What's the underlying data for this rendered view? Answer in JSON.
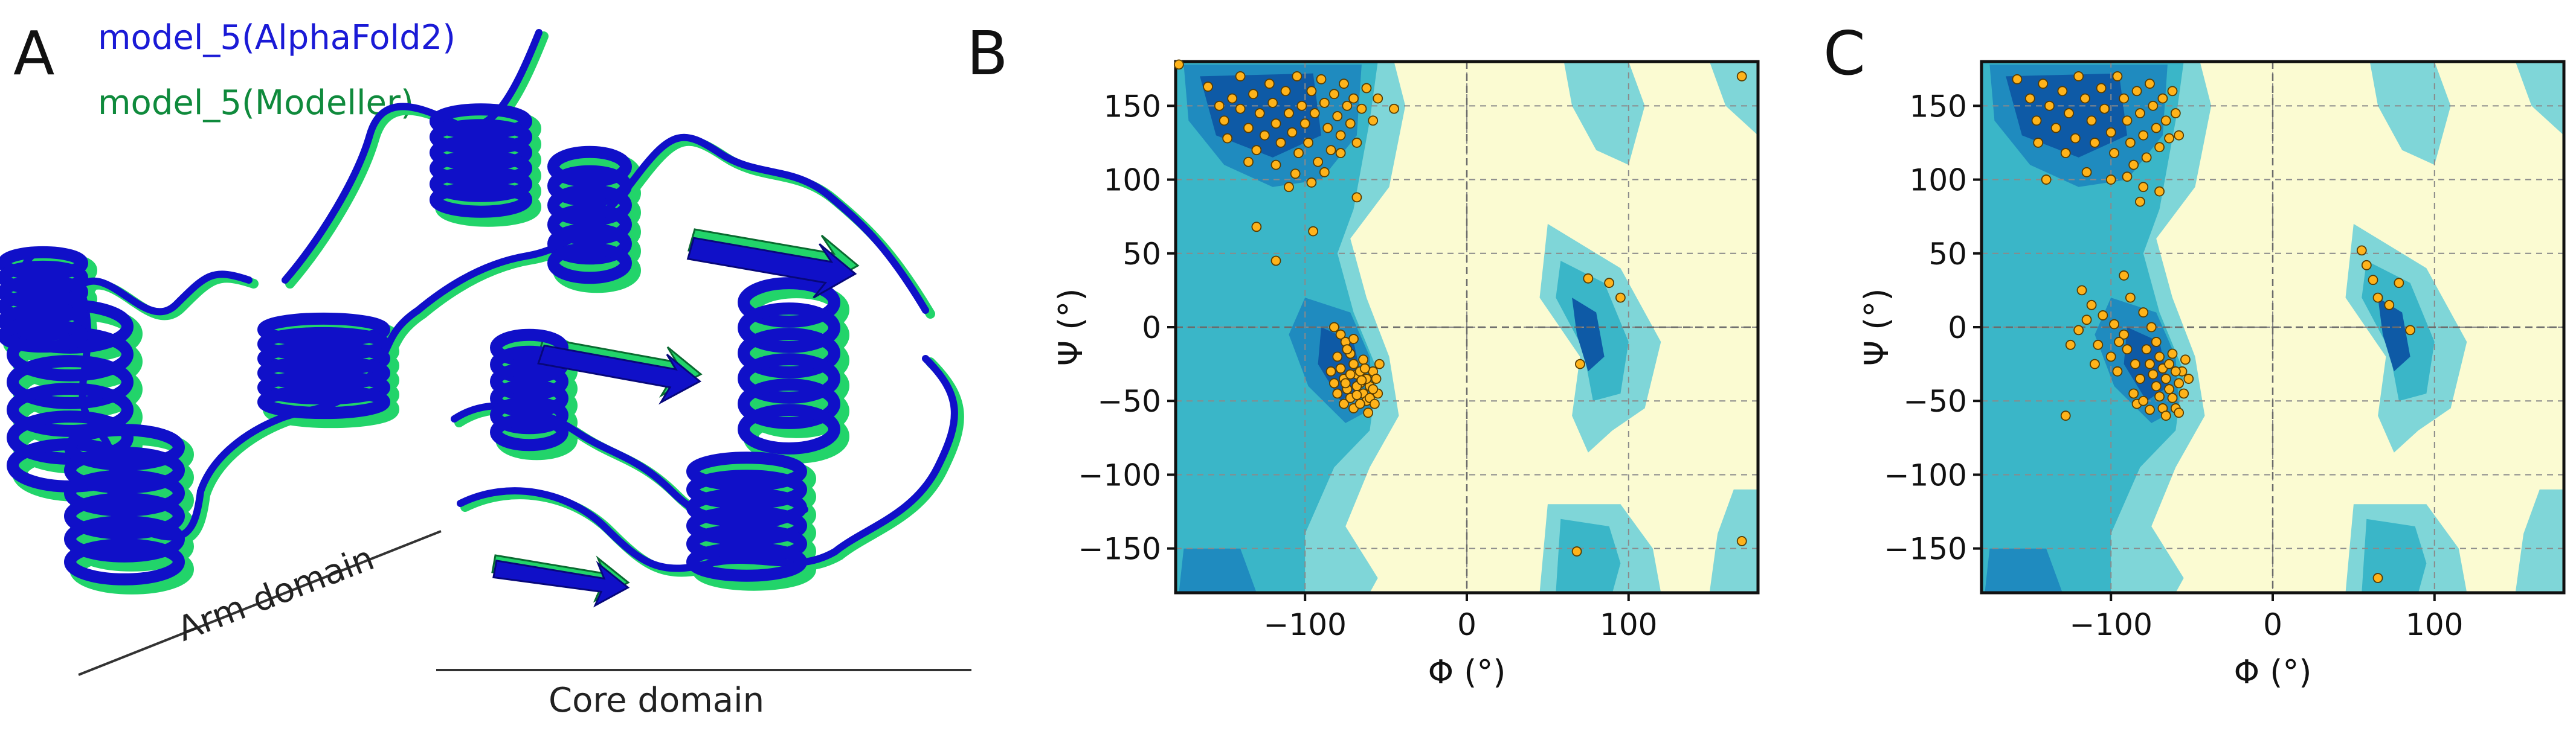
{
  "panel_a": {
    "letter": "A",
    "legend": [
      {
        "label": "model_5(AlphaFold2)",
        "color": "#1a1ad6"
      },
      {
        "label": "model_5(Modeller)",
        "color": "#0f8a3c"
      }
    ],
    "domain_labels": {
      "arm": "Arm domain",
      "core": "Core domain"
    },
    "colors": {
      "alphafold": "#1010c8",
      "modeller": "#22d46a"
    }
  },
  "panel_b": {
    "letter": "B"
  },
  "panel_c": {
    "letter": "C"
  },
  "chart_data": [
    {
      "type": "scatter",
      "panel": "B",
      "title": "",
      "xlabel": "Φ (°)",
      "ylabel": "Ψ (°)",
      "xlim": [
        -180,
        180
      ],
      "ylim": [
        -180,
        180
      ],
      "xticks": [
        -100,
        0,
        100
      ],
      "yticks": [
        150,
        100,
        50,
        0,
        -50,
        -100,
        -150
      ],
      "grid": true,
      "point_color": "#ffb31a",
      "series": [
        {
          "points": [
            [
              -178,
              178
            ],
            [
              -160,
              163
            ],
            [
              -153,
              150
            ],
            [
              -150,
              140
            ],
            [
              -145,
              155
            ],
            [
              -140,
              170
            ],
            [
              -140,
              148
            ],
            [
              -135,
              135
            ],
            [
              -132,
              158
            ],
            [
              -128,
              145
            ],
            [
              -125,
              130
            ],
            [
              -122,
              165
            ],
            [
              -120,
              152
            ],
            [
              -118,
              138
            ],
            [
              -115,
              125
            ],
            [
              -112,
              160
            ],
            [
              -110,
              145
            ],
            [
              -108,
              132
            ],
            [
              -105,
              170
            ],
            [
              -104,
              118
            ],
            [
              -102,
              150
            ],
            [
              -100,
              138
            ],
            [
              -98,
              125
            ],
            [
              -96,
              160
            ],
            [
              -94,
              145
            ],
            [
              -92,
              112
            ],
            [
              -90,
              168
            ],
            [
              -88,
              152
            ],
            [
              -86,
              135
            ],
            [
              -84,
              120
            ],
            [
              -82,
              158
            ],
            [
              -80,
              143
            ],
            [
              -78,
              130
            ],
            [
              -76,
              165
            ],
            [
              -74,
              150
            ],
            [
              -72,
              138
            ],
            [
              -70,
              155
            ],
            [
              -68,
              125
            ],
            [
              -65,
              148
            ],
            [
              -62,
              162
            ],
            [
              -58,
              140
            ],
            [
              -55,
              155
            ],
            [
              -45,
              148
            ],
            [
              -148,
              128
            ],
            [
              -130,
              120
            ],
            [
              -118,
              110
            ],
            [
              -106,
              104
            ],
            [
              -135,
              112
            ],
            [
              -96,
              98
            ],
            [
              -88,
              105
            ],
            [
              -78,
              118
            ],
            [
              -110,
              95
            ],
            [
              -130,
              68
            ],
            [
              -118,
              45
            ],
            [
              -95,
              65
            ],
            [
              -68,
              88
            ],
            [
              -82,
              0
            ],
            [
              -78,
              -5
            ],
            [
              -75,
              -10
            ],
            [
              -72,
              -18
            ],
            [
              -70,
              -25
            ],
            [
              -68,
              -32
            ],
            [
              -66,
              -38
            ],
            [
              -64,
              -45
            ],
            [
              -62,
              -50
            ],
            [
              -60,
              -40
            ],
            [
              -58,
              -30
            ],
            [
              -56,
              -35
            ],
            [
              -55,
              -45
            ],
            [
              -54,
              -25
            ],
            [
              -80,
              -20
            ],
            [
              -78,
              -28
            ],
            [
              -76,
              -35
            ],
            [
              -74,
              -42
            ],
            [
              -72,
              -48
            ],
            [
              -70,
              -55
            ],
            [
              -68,
              -40
            ],
            [
              -66,
              -30
            ],
            [
              -64,
              -22
            ],
            [
              -62,
              -35
            ],
            [
              -60,
              -48
            ],
            [
              -58,
              -42
            ],
            [
              -84,
              -30
            ],
            [
              -82,
              -38
            ],
            [
              -80,
              -45
            ],
            [
              -76,
              -52
            ],
            [
              -74,
              -15
            ],
            [
              -70,
              -8
            ],
            [
              -66,
              -52
            ],
            [
              -63,
              -28
            ],
            [
              -61,
              -58
            ],
            [
              -57,
              -52
            ],
            [
              -75,
              -38
            ],
            [
              -72,
              -32
            ],
            [
              -68,
              -46
            ],
            [
              -65,
              -36
            ],
            [
              75,
              33
            ],
            [
              88,
              30
            ],
            [
              95,
              20
            ],
            [
              70,
              -25
            ],
            [
              170,
              170
            ],
            [
              170,
              -145
            ],
            [
              68,
              -152
            ]
          ]
        }
      ]
    },
    {
      "type": "scatter",
      "panel": "C",
      "title": "",
      "xlabel": "Φ (°)",
      "ylabel": "Ψ (°)",
      "xlim": [
        -180,
        180
      ],
      "ylim": [
        -180,
        180
      ],
      "xticks": [
        -100,
        0,
        100
      ],
      "yticks": [
        150,
        100,
        50,
        0,
        -50,
        -100,
        -150
      ],
      "grid": true,
      "point_color": "#ffb31a",
      "series": [
        {
          "points": [
            [
              -158,
              168
            ],
            [
              -150,
              155
            ],
            [
              -146,
              140
            ],
            [
              -142,
              165
            ],
            [
              -138,
              150
            ],
            [
              -134,
              135
            ],
            [
              -130,
              160
            ],
            [
              -126,
              145
            ],
            [
              -122,
              128
            ],
            [
              -120,
              170
            ],
            [
              -116,
              155
            ],
            [
              -112,
              140
            ],
            [
              -110,
              125
            ],
            [
              -106,
              162
            ],
            [
              -104,
              148
            ],
            [
              -100,
              132
            ],
            [
              -98,
              118
            ],
            [
              -96,
              170
            ],
            [
              -92,
              155
            ],
            [
              -90,
              140
            ],
            [
              -88,
              125
            ],
            [
              -86,
              110
            ],
            [
              -84,
              160
            ],
            [
              -82,
              145
            ],
            [
              -80,
              130
            ],
            [
              -78,
              115
            ],
            [
              -76,
              165
            ],
            [
              -74,
              150
            ],
            [
              -72,
              135
            ],
            [
              -70,
              122
            ],
            [
              -68,
              155
            ],
            [
              -66,
              140
            ],
            [
              -64,
              128
            ],
            [
              -62,
              160
            ],
            [
              -60,
              145
            ],
            [
              -58,
              130
            ],
            [
              -145,
              125
            ],
            [
              -128,
              118
            ],
            [
              -115,
              105
            ],
            [
              -100,
              100
            ],
            [
              -90,
              102
            ],
            [
              -80,
              95
            ],
            [
              -70,
              92
            ],
            [
              -140,
              100
            ],
            [
              -82,
              85
            ],
            [
              -118,
              25
            ],
            [
              -112,
              15
            ],
            [
              -105,
              8
            ],
            [
              -98,
              2
            ],
            [
              -92,
              -5
            ],
            [
              -88,
              20
            ],
            [
              -80,
              10
            ],
            [
              -75,
              0
            ],
            [
              -72,
              -10
            ],
            [
              -70,
              -20
            ],
            [
              -68,
              -28
            ],
            [
              -66,
              -35
            ],
            [
              -64,
              -42
            ],
            [
              -62,
              -48
            ],
            [
              -60,
              -55
            ],
            [
              -58,
              -38
            ],
            [
              -56,
              -30
            ],
            [
              -55,
              -45
            ],
            [
              -54,
              -22
            ],
            [
              -52,
              -35
            ],
            [
              -78,
              -15
            ],
            [
              -76,
              -25
            ],
            [
              -74,
              -32
            ],
            [
              -72,
              -40
            ],
            [
              -70,
              -47
            ],
            [
              -68,
              -55
            ],
            [
              -66,
              -60
            ],
            [
              -64,
              -25
            ],
            [
              -62,
              -18
            ],
            [
              -60,
              -30
            ],
            [
              -90,
              -15
            ],
            [
              -85,
              -25
            ],
            [
              -82,
              -35
            ],
            [
              -95,
              -10
            ],
            [
              -100,
              -20
            ],
            [
              -108,
              -12
            ],
            [
              -115,
              5
            ],
            [
              -120,
              -2
            ],
            [
              -125,
              -12
            ],
            [
              -110,
              -25
            ],
            [
              -86,
              -45
            ],
            [
              -84,
              -52
            ],
            [
              -80,
              -50
            ],
            [
              -76,
              -56
            ],
            [
              -58,
              -58
            ],
            [
              -92,
              35
            ],
            [
              -96,
              -30
            ],
            [
              -128,
              -60
            ],
            [
              55,
              52
            ],
            [
              58,
              42
            ],
            [
              62,
              32
            ],
            [
              65,
              20
            ],
            [
              72,
              15
            ],
            [
              78,
              30
            ],
            [
              85,
              -2
            ],
            [
              65,
              -170
            ]
          ]
        }
      ]
    }
  ]
}
